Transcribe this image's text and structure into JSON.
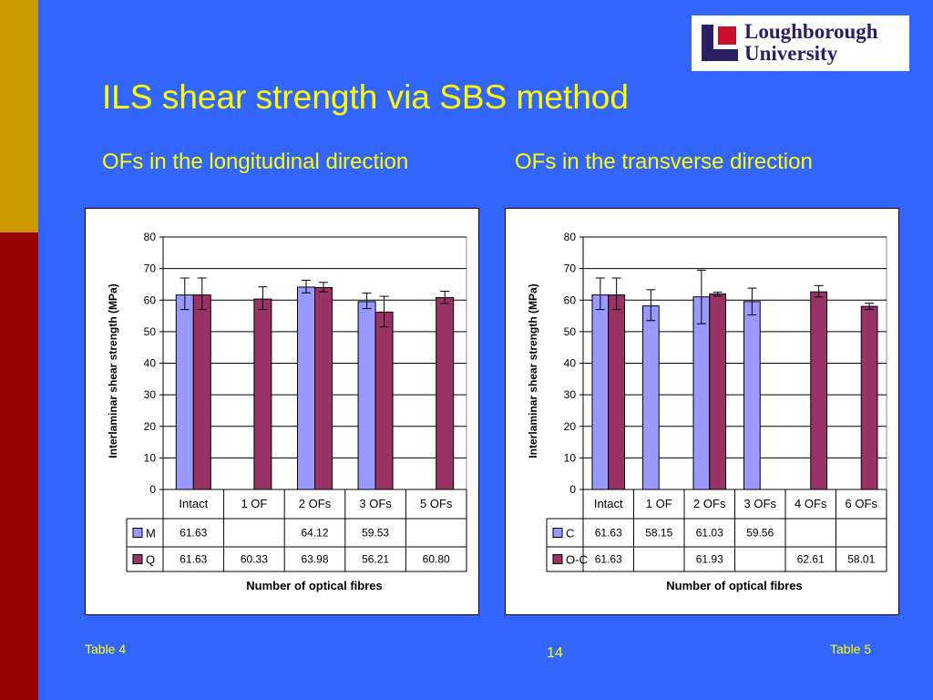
{
  "slide": {
    "title": "ILS shear strength via SBS method",
    "subtitle_left": "OFs in the longitudinal direction",
    "subtitle_right": "OFs in the transverse direction",
    "footnote_left": "Table 4",
    "footnote_right": "Table 5",
    "page_number": "14",
    "logo_line1": "Loughborough",
    "logo_line2": "University",
    "colors": {
      "background": "#3366ff",
      "stripe_gold": "#cc9900",
      "stripe_red": "#990000",
      "text_yellow": "#ffff00",
      "logo_purple": "#2a1f63",
      "logo_red": "#c8102e"
    }
  },
  "chart_data": [
    {
      "type": "bar",
      "ylabel": "Interlaminar shear strength (MPa)",
      "xlabel": "Number of optical fibres",
      "ylim": [
        0,
        80
      ],
      "yticks": [
        0,
        10,
        20,
        30,
        40,
        50,
        60,
        70,
        80
      ],
      "grid": true,
      "legend": "in data table",
      "categories": [
        "Intact",
        "1 OF",
        "2 OFs",
        "3 OFs",
        "5 OFs"
      ],
      "series": [
        {
          "name": "M",
          "color": "#9999ff",
          "values": [
            61.63,
            null,
            64.12,
            59.53,
            null
          ],
          "labels": [
            "61.63",
            "",
            "64.12",
            "59.53",
            ""
          ],
          "error": [
            [
              57,
              67
            ],
            null,
            [
              62.3,
              66.3
            ],
            [
              57.3,
              62.2
            ],
            null
          ]
        },
        {
          "name": "Q",
          "color": "#993366",
          "values": [
            61.63,
            60.33,
            63.98,
            56.21,
            60.8
          ],
          "labels": [
            "61.63",
            "60.33",
            "63.98",
            "56.21",
            "60.80"
          ],
          "error": [
            [
              57,
              67
            ],
            [
              57,
              64.2
            ],
            [
              62.6,
              65.6
            ],
            [
              51.5,
              61.2
            ],
            [
              59,
              62.8
            ]
          ]
        }
      ]
    },
    {
      "type": "bar",
      "ylabel": "Interlaminar shear strength (MPa)",
      "xlabel": "Number of optical fibres",
      "ylim": [
        0,
        80
      ],
      "yticks": [
        0,
        10,
        20,
        30,
        40,
        50,
        60,
        70,
        80
      ],
      "grid": true,
      "legend": "in data table",
      "categories": [
        "Intact",
        "1 OF",
        "2 OFs",
        "3 OFs",
        "4 OFs",
        "6 OFs"
      ],
      "series": [
        {
          "name": "C",
          "color": "#9999ff",
          "values": [
            61.63,
            58.15,
            61.03,
            59.56,
            null,
            null
          ],
          "labels": [
            "61.63",
            "58.15",
            "61.03",
            "59.56",
            "",
            ""
          ],
          "error": [
            [
              57,
              67
            ],
            [
              53.5,
              63.3
            ],
            [
              52.5,
              69.5
            ],
            [
              55.3,
              63.8
            ],
            null,
            null
          ]
        },
        {
          "name": "O-C",
          "color": "#993366",
          "values": [
            61.63,
            null,
            61.93,
            null,
            62.61,
            58.01
          ],
          "labels": [
            "61.63",
            "",
            "61.93",
            "",
            "62.61",
            "58.01"
          ],
          "error": [
            [
              57,
              67
            ],
            null,
            [
              61.3,
              62.5
            ],
            null,
            [
              61,
              64.6
            ],
            [
              57,
              59
            ]
          ]
        }
      ]
    }
  ]
}
